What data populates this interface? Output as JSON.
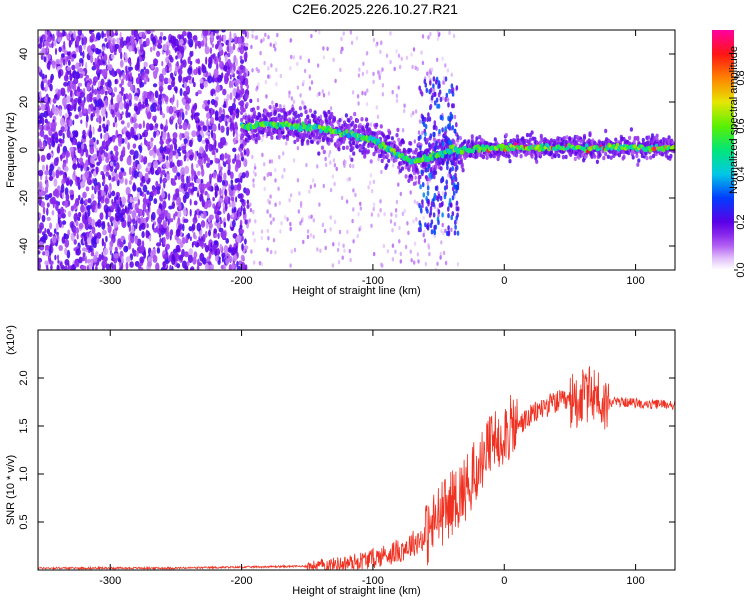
{
  "title": "C2E6.2025.226.10.27.R21",
  "chart_data": [
    {
      "type": "heatmap",
      "xlabel": "Height of straight line (km)",
      "ylabel": "Frequency (Hz)",
      "xlim": [
        -355,
        130
      ],
      "ylim": [
        -50,
        50
      ],
      "xticks": [
        -300,
        -200,
        -100,
        0,
        100
      ],
      "yticks": [
        -40,
        -20,
        0,
        20,
        40
      ],
      "colorbar": {
        "label": "Normalized spectral amplitude",
        "range": [
          0.0,
          1.0
        ],
        "ticks": [
          "0.0",
          "0.2",
          "0.4",
          "0.6",
          "0.8"
        ],
        "tick_values": [
          0.0,
          0.2,
          0.4,
          0.6,
          0.8
        ]
      },
      "ridge": [
        {
          "x": -200,
          "y": 10
        },
        {
          "x": -180,
          "y": 11
        },
        {
          "x": -160,
          "y": 10
        },
        {
          "x": -140,
          "y": 9
        },
        {
          "x": -120,
          "y": 7
        },
        {
          "x": -100,
          "y": 4
        },
        {
          "x": -80,
          "y": -2
        },
        {
          "x": -70,
          "y": -5
        },
        {
          "x": -55,
          "y": -3
        },
        {
          "x": -40,
          "y": 0
        },
        {
          "x": -30,
          "y": 0
        },
        {
          "x": 0,
          "y": 1
        },
        {
          "x": 50,
          "y": 1
        },
        {
          "x": 100,
          "y": 1
        },
        {
          "x": 130,
          "y": 1
        }
      ]
    },
    {
      "type": "line",
      "xlabel": "Height of straight line (km)",
      "ylabel": "SNR (10 * v/v)",
      "yscale_label": "(x10⁴)",
      "xlim": [
        -355,
        130
      ],
      "ylim": [
        0,
        2.5
      ],
      "xticks": [
        -300,
        -200,
        -100,
        0,
        100
      ],
      "yticks": [
        0.5,
        1.0,
        1.5,
        2.0
      ],
      "ytick_labels": [
        "0.5",
        "1.0",
        "1.5",
        "2.0"
      ],
      "series": [
        {
          "color": "#f03020",
          "x": [
            -355,
            -300,
            -250,
            -200,
            -150,
            -120,
            -100,
            -80,
            -60,
            -50,
            -40,
            -30,
            -20,
            -10,
            0,
            10,
            20,
            30,
            40,
            50,
            60,
            70,
            75,
            80,
            90,
            100,
            110,
            120,
            130
          ],
          "y": [
            0.02,
            0.02,
            0.02,
            0.03,
            0.04,
            0.07,
            0.12,
            0.2,
            0.35,
            0.55,
            0.7,
            0.85,
            1.05,
            1.3,
            1.45,
            1.5,
            1.6,
            1.7,
            1.75,
            1.75,
            1.8,
            1.85,
            1.7,
            1.75,
            1.75,
            1.74,
            1.72,
            1.73,
            1.72
          ]
        }
      ]
    }
  ]
}
